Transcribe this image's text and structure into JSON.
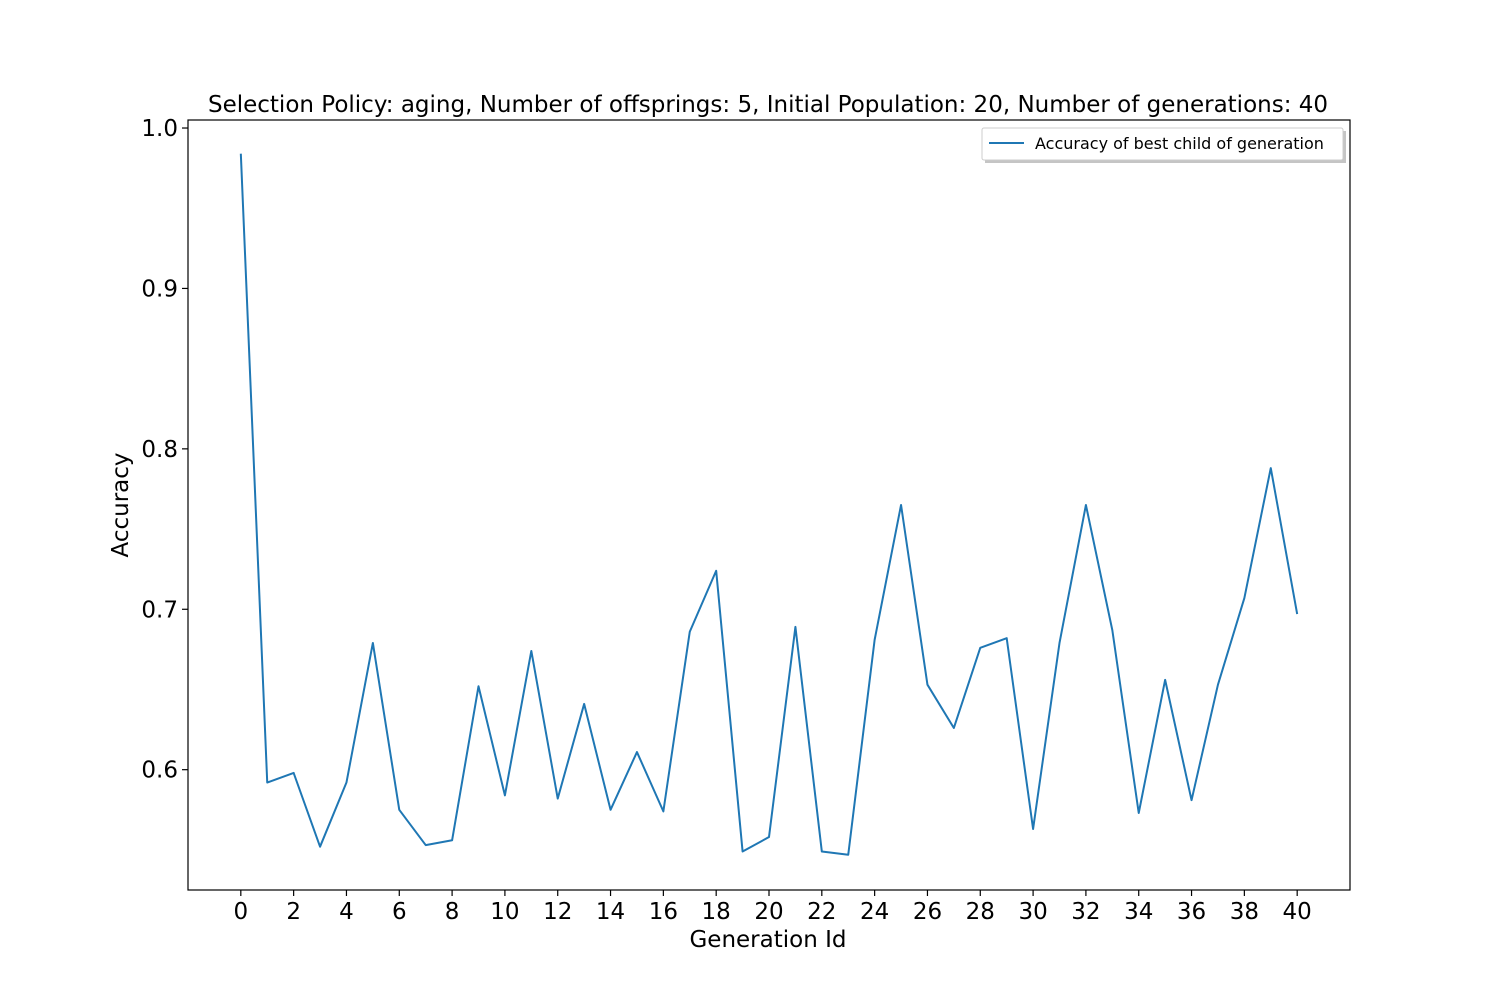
{
  "chart_data": {
    "type": "line",
    "title": "Selection Policy: aging, Number of offsprings: 5, Initial Population: 20, Number of generations: 40",
    "xlabel": "Generation Id",
    "ylabel": "Accuracy",
    "xlim": [
      -2,
      42
    ],
    "ylim": [
      0.525,
      1.005
    ],
    "xticks": [
      0,
      2,
      4,
      6,
      8,
      10,
      12,
      14,
      16,
      18,
      20,
      22,
      24,
      26,
      28,
      30,
      32,
      34,
      36,
      38,
      40
    ],
    "xtick_labels": [
      "0",
      "2",
      "4",
      "6",
      "8",
      "10",
      "12",
      "14",
      "16",
      "18",
      "20",
      "22",
      "24",
      "26",
      "28",
      "30",
      "32",
      "34",
      "36",
      "38",
      "40"
    ],
    "yticks": [
      0.6,
      0.7,
      0.8,
      0.9,
      1.0
    ],
    "ytick_labels": [
      "0.6",
      "0.7",
      "0.8",
      "0.9",
      "1.0"
    ],
    "grid": false,
    "legend_position": "top-right",
    "series": [
      {
        "name": "Accuracy of best child of generation",
        "color": "#1f77b4",
        "x": [
          0,
          1,
          2,
          3,
          4,
          5,
          6,
          7,
          8,
          9,
          10,
          11,
          12,
          13,
          14,
          15,
          16,
          17,
          18,
          19,
          20,
          21,
          22,
          23,
          24,
          25,
          26,
          27,
          28,
          29,
          30,
          31,
          32,
          33,
          34,
          35,
          36,
          37,
          38,
          39,
          40
        ],
        "y": [
          0.984,
          0.592,
          0.598,
          0.552,
          0.592,
          0.679,
          0.575,
          0.553,
          0.556,
          0.652,
          0.584,
          0.674,
          0.582,
          0.641,
          0.575,
          0.611,
          0.574,
          0.686,
          0.724,
          0.549,
          0.558,
          0.689,
          0.549,
          0.547,
          0.681,
          0.765,
          0.653,
          0.626,
          0.676,
          0.682,
          0.563,
          0.679,
          0.765,
          0.687,
          0.573,
          0.656,
          0.581,
          0.653,
          0.707,
          0.788,
          0.697
        ]
      }
    ]
  }
}
